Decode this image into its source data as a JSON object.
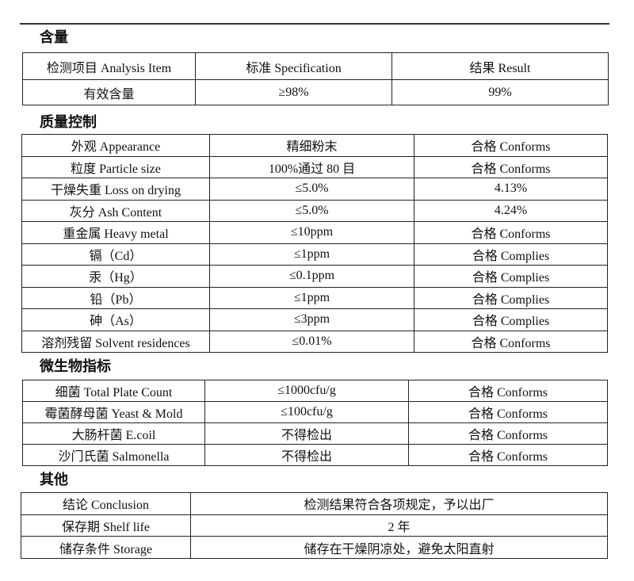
{
  "sections": {
    "content": {
      "title": "含量",
      "header": [
        "检测项目  Analysis Item",
        "标准    Specification",
        "结果  Result"
      ],
      "rows": [
        [
          "有效含量",
          "≥98%",
          "99%"
        ]
      ]
    },
    "quality": {
      "title": "质量控制",
      "rows": [
        [
          "外观  Appearance",
          "精细粉末",
          "合格 Conforms"
        ],
        [
          "粒度  Particle size",
          "100%通过 80 目",
          "合格 Conforms"
        ],
        [
          "干燥失重 Loss on drying",
          "≤5.0%",
          "4.13%"
        ],
        [
          "灰分 Ash Content",
          "≤5.0%",
          "4.24%"
        ],
        [
          "重金属  Heavy metal",
          "≤10ppm",
          "合格 Conforms"
        ],
        [
          "镉（Cd）",
          "≤1ppm",
          "合格 Complies"
        ],
        [
          "汞（Hg）",
          "≤0.1ppm",
          "合格 Complies"
        ],
        [
          "铅（Pb）",
          "≤1ppm",
          "合格 Complies"
        ],
        [
          "砷（As）",
          "≤3ppm",
          "合格 Complies"
        ],
        [
          "溶剂残留 Solvent residences",
          "≤0.01%",
          "合格 Conforms"
        ]
      ]
    },
    "micro": {
      "title": "微生物指标",
      "rows": [
        [
          "细菌  Total Plate Count",
          "≤1000cfu/g",
          "合格 Conforms"
        ],
        [
          "霉菌酵母菌  Yeast & Mold",
          "≤100cfu/g",
          "合格 Conforms"
        ],
        [
          "大肠杆菌    E.coil",
          "不得检出",
          "合格 Conforms"
        ],
        [
          "沙门氏菌    Salmonella",
          "不得检出",
          "合格 Conforms"
        ]
      ]
    },
    "other": {
      "title": "其他",
      "rows": [
        [
          "结论  Conclusion",
          "检测结果符合各项规定，予以出厂"
        ],
        [
          "保存期  Shelf life",
          "2 年"
        ],
        [
          "储存条件 Storage",
          "储存在干燥阴凉处，避免太阳直射"
        ]
      ]
    }
  }
}
